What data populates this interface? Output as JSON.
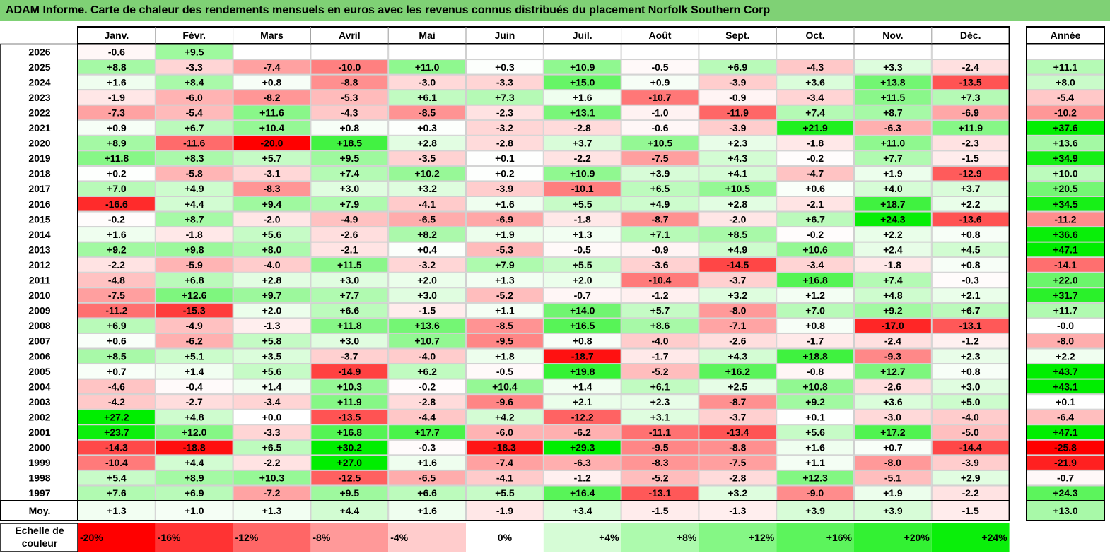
{
  "title": "ADAM Informe. Carte de chaleur des rendements mensuels en euros avec les revenus connus distribués du placement Norfolk Southern Corp",
  "chart_data": {
    "type": "heatmap",
    "months": [
      "Janv.",
      "Févr.",
      "Mars",
      "Avril",
      "Mai",
      "Juin",
      "Juil.",
      "Août",
      "Sept.",
      "Oct.",
      "Nov.",
      "Déc."
    ],
    "year_label": "Année",
    "avg_label": "Moy.",
    "rows": [
      {
        "year": "2026",
        "values": [
          -0.6,
          9.5,
          null,
          null,
          null,
          null,
          null,
          null,
          null,
          null,
          null,
          null
        ],
        "annual": null
      },
      {
        "year": "2025",
        "values": [
          8.8,
          -3.3,
          -7.4,
          -10.0,
          11.0,
          0.3,
          10.9,
          -0.5,
          6.9,
          -4.3,
          3.3,
          -2.4
        ],
        "annual": 11.1
      },
      {
        "year": "2024",
        "values": [
          1.6,
          8.4,
          0.8,
          -8.8,
          -3.0,
          -3.3,
          15.0,
          0.9,
          -3.9,
          3.6,
          13.8,
          -13.5
        ],
        "annual": 8.0
      },
      {
        "year": "2023",
        "values": [
          -1.9,
          -6.0,
          -8.2,
          -5.3,
          6.1,
          7.3,
          1.6,
          -10.7,
          -0.9,
          -3.4,
          11.5,
          7.3
        ],
        "annual": -5.4
      },
      {
        "year": "2022",
        "values": [
          -7.3,
          -5.4,
          11.6,
          -4.3,
          -8.5,
          -2.3,
          13.1,
          -1.0,
          -11.9,
          7.4,
          8.7,
          -6.9
        ],
        "annual": -10.2
      },
      {
        "year": "2021",
        "values": [
          0.9,
          6.7,
          10.4,
          0.8,
          0.3,
          -3.2,
          -2.8,
          -0.6,
          -3.9,
          21.9,
          -6.3,
          11.9
        ],
        "annual": 37.6
      },
      {
        "year": "2020",
        "values": [
          8.9,
          -11.6,
          -20.0,
          18.5,
          2.8,
          -2.8,
          3.7,
          10.5,
          2.3,
          -1.8,
          11.0,
          -2.3
        ],
        "annual": 13.6
      },
      {
        "year": "2019",
        "values": [
          11.8,
          8.3,
          5.7,
          9.5,
          -3.5,
          0.1,
          -2.2,
          -7.5,
          4.3,
          -0.2,
          7.7,
          -1.5
        ],
        "annual": 34.9
      },
      {
        "year": "2018",
        "values": [
          0.2,
          -5.8,
          -3.1,
          7.4,
          10.2,
          0.2,
          10.9,
          3.9,
          4.1,
          -4.7,
          1.9,
          -12.9
        ],
        "annual": 10.0
      },
      {
        "year": "2017",
        "values": [
          7.0,
          4.9,
          -8.3,
          3.0,
          3.2,
          -3.9,
          -10.1,
          6.5,
          10.5,
          0.6,
          4.0,
          3.7
        ],
        "annual": 20.5
      },
      {
        "year": "2016",
        "values": [
          -16.6,
          4.4,
          9.4,
          7.9,
          -4.1,
          1.6,
          5.5,
          4.9,
          2.8,
          -2.1,
          18.7,
          2.2
        ],
        "annual": 34.5
      },
      {
        "year": "2015",
        "values": [
          -0.2,
          8.7,
          -2.0,
          -4.9,
          -6.5,
          -6.9,
          -1.8,
          -8.7,
          -2.0,
          6.7,
          24.3,
          -13.6
        ],
        "annual": -11.2
      },
      {
        "year": "2014",
        "values": [
          1.6,
          -1.8,
          5.6,
          -2.6,
          8.2,
          1.9,
          1.3,
          7.1,
          8.5,
          -0.2,
          2.2,
          0.8
        ],
        "annual": 36.6
      },
      {
        "year": "2013",
        "values": [
          9.2,
          9.8,
          8.0,
          -2.1,
          0.4,
          -5.3,
          -0.5,
          -0.9,
          4.9,
          10.6,
          2.4,
          4.5
        ],
        "annual": 47.1
      },
      {
        "year": "2012",
        "values": [
          -2.2,
          -5.9,
          -4.0,
          11.5,
          -3.2,
          7.9,
          5.5,
          -3.6,
          -14.5,
          -3.4,
          -1.8,
          0.8
        ],
        "annual": -14.1
      },
      {
        "year": "2011",
        "values": [
          -4.8,
          6.8,
          2.8,
          3.0,
          2.0,
          1.3,
          2.0,
          -10.4,
          -3.7,
          16.8,
          7.4,
          -0.3
        ],
        "annual": 22.0
      },
      {
        "year": "2010",
        "values": [
          -7.5,
          12.6,
          9.7,
          7.7,
          3.0,
          -5.2,
          -0.7,
          -1.2,
          3.2,
          1.2,
          4.8,
          2.1
        ],
        "annual": 31.7
      },
      {
        "year": "2009",
        "values": [
          -11.2,
          -15.3,
          2.0,
          6.6,
          -1.5,
          1.1,
          14.0,
          5.7,
          -8.0,
          7.0,
          9.2,
          6.7
        ],
        "annual": 11.7
      },
      {
        "year": "2008",
        "values": [
          6.9,
          -4.9,
          -1.3,
          11.8,
          13.6,
          -8.5,
          16.5,
          8.6,
          -7.1,
          0.8,
          -17.0,
          -13.1
        ],
        "annual": -0.0
      },
      {
        "year": "2007",
        "values": [
          0.6,
          -6.2,
          5.8,
          3.0,
          10.7,
          -9.5,
          0.8,
          -4.0,
          -2.6,
          -1.7,
          -2.4,
          -1.2
        ],
        "annual": -8.0
      },
      {
        "year": "2006",
        "values": [
          8.5,
          5.1,
          3.5,
          -3.7,
          -4.0,
          1.8,
          -18.7,
          -1.7,
          4.3,
          18.8,
          -9.3,
          2.3
        ],
        "annual": 2.2
      },
      {
        "year": "2005",
        "values": [
          0.7,
          1.4,
          5.6,
          -14.9,
          6.2,
          -0.5,
          19.8,
          -5.2,
          16.2,
          -0.8,
          12.7,
          0.8
        ],
        "annual": 43.7
      },
      {
        "year": "2004",
        "values": [
          -4.6,
          -0.4,
          1.4,
          10.3,
          -0.2,
          10.4,
          1.4,
          6.1,
          2.5,
          10.8,
          -2.6,
          3.0
        ],
        "annual": 43.1
      },
      {
        "year": "2003",
        "values": [
          -4.2,
          -2.7,
          -3.4,
          11.9,
          -2.8,
          -9.6,
          2.1,
          2.3,
          -8.7,
          9.2,
          3.6,
          5.0
        ],
        "annual": 0.1
      },
      {
        "year": "2002",
        "values": [
          27.2,
          4.8,
          0.0,
          -13.5,
          -4.4,
          4.2,
          -12.2,
          3.1,
          -3.7,
          0.1,
          -3.0,
          -4.0
        ],
        "annual": -6.4
      },
      {
        "year": "2001",
        "values": [
          23.7,
          12.0,
          -3.3,
          16.8,
          17.7,
          -6.0,
          -6.2,
          -11.1,
          -13.4,
          5.6,
          17.2,
          -5.0
        ],
        "annual": 47.1
      },
      {
        "year": "2000",
        "values": [
          -14.3,
          -18.8,
          6.5,
          30.2,
          -0.3,
          -18.3,
          29.3,
          -9.5,
          -8.8,
          1.6,
          0.7,
          -14.4
        ],
        "annual": -25.8
      },
      {
        "year": "1999",
        "values": [
          -10.4,
          4.4,
          -2.2,
          27.0,
          1.6,
          -7.4,
          -6.3,
          -8.3,
          -7.5,
          1.1,
          -8.0,
          -3.9
        ],
        "annual": -21.9
      },
      {
        "year": "1998",
        "values": [
          5.4,
          8.9,
          10.3,
          -12.5,
          -6.5,
          -4.1,
          -1.2,
          -5.2,
          -2.8,
          12.3,
          -5.1,
          2.9
        ],
        "annual": -0.7
      },
      {
        "year": "1997",
        "values": [
          7.6,
          6.9,
          -7.2,
          9.5,
          6.6,
          5.5,
          16.4,
          -13.1,
          3.2,
          -9.0,
          1.9,
          -2.2
        ],
        "annual": 24.3
      }
    ],
    "averages": [
      1.3,
      1.0,
      1.3,
      4.4,
      1.6,
      -1.9,
      3.4,
      -1.5,
      -1.3,
      3.9,
      3.9,
      -1.5
    ],
    "average_annual": 13.0,
    "scale_label": [
      "Echelle de",
      "couleur"
    ],
    "scale": [
      {
        "value": -20,
        "label": "-20%"
      },
      {
        "value": -16,
        "label": "-16%"
      },
      {
        "value": -12,
        "label": "-12%"
      },
      {
        "value": -8,
        "label": "-8%"
      },
      {
        "value": -4,
        "label": "-4%"
      },
      {
        "value": 0,
        "label": "0%"
      },
      {
        "value": 4,
        "label": "+4%"
      },
      {
        "value": 8,
        "label": "+8%"
      },
      {
        "value": 12,
        "label": "+12%"
      },
      {
        "value": 16,
        "label": "+16%"
      },
      {
        "value": 20,
        "label": "+20%"
      },
      {
        "value": 24,
        "label": "+24%"
      }
    ],
    "colors": {
      "neg": "#ff0000",
      "pos": "#00ee00",
      "zero": "#ffffff",
      "title_bg": "#7fd175"
    }
  }
}
